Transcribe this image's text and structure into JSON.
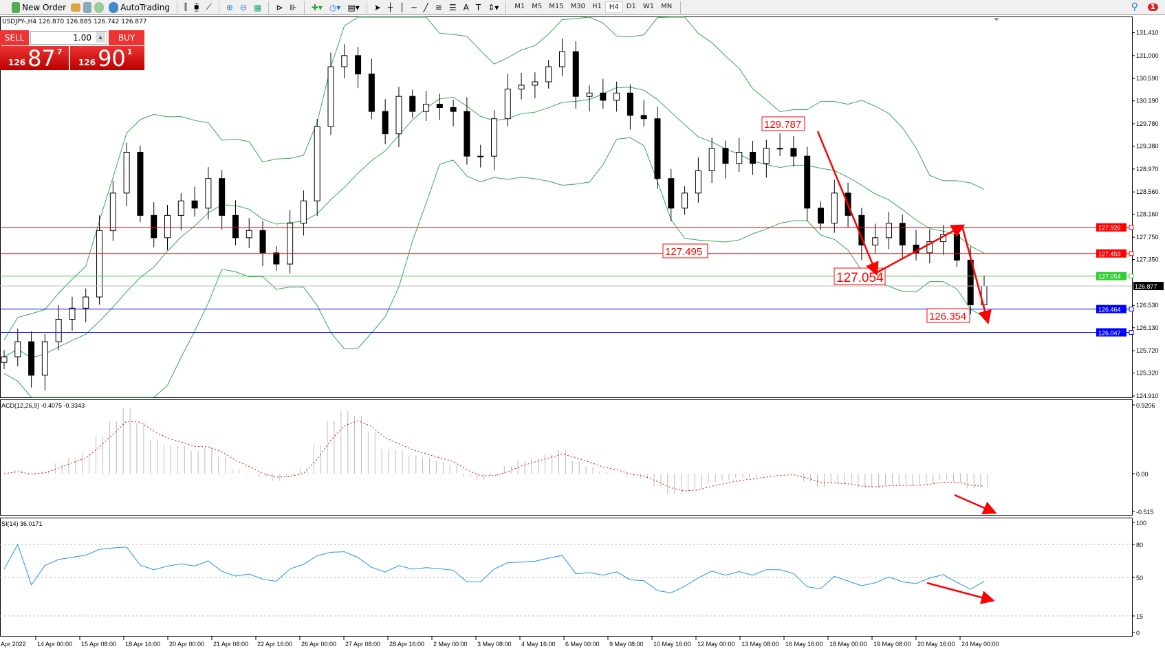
{
  "toolbar": {
    "new_order": "New Order",
    "autotrading": "AutoTrading",
    "timeframes": [
      "M1",
      "M5",
      "M15",
      "M30",
      "H1",
      "H4",
      "D1",
      "W1",
      "MN"
    ],
    "active_timeframe": "H4",
    "notifications": "1"
  },
  "symbol_info": "USDJPY-,H4  126.870 126.885 126.742 126.877",
  "oneclick": {
    "sell": "SELL",
    "buy": "BUY",
    "lot": "1.00",
    "sell_small": "126",
    "sell_big": "87",
    "sell_pip": "7",
    "buy_small": "126",
    "buy_big": "90",
    "buy_pip": "1"
  },
  "chart_data": {
    "type": "candlestick",
    "symbol": "USDJPY-",
    "timeframe": "H4",
    "closes": [
      125.61,
      125.88,
      125.28,
      125.88,
      126.28,
      126.48,
      126.68,
      127.87,
      128.54,
      129.27,
      128.14,
      127.74,
      128.14,
      128.4,
      128.27,
      128.8,
      128.14,
      127.74,
      127.87,
      127.47,
      127.27,
      128.0,
      128.4,
      129.73,
      130.8,
      131.0,
      130.67,
      130.0,
      129.6,
      130.27,
      130.0,
      130.13,
      130.07,
      130.0,
      129.2,
      129.2,
      129.87,
      130.4,
      130.47,
      130.53,
      130.8,
      131.07,
      130.27,
      130.33,
      130.2,
      130.33,
      129.93,
      129.87,
      128.8,
      128.27,
      128.54,
      128.94,
      129.34,
      129.07,
      129.27,
      129.07,
      129.34,
      129.34,
      129.2,
      128.27,
      128.0,
      128.54,
      128.14,
      127.61,
      127.74,
      128.0,
      127.61,
      127.47,
      127.67,
      127.8,
      127.34,
      126.54,
      126.877
    ],
    "price_ticks": [
      "131.410",
      "131.000",
      "130.590",
      "130.190",
      "129.780",
      "129.380",
      "128.970",
      "128.560",
      "128.160",
      "127.750",
      "127.350",
      "126.530",
      "126.130",
      "125.720",
      "125.320",
      "124.910"
    ],
    "yrange": [
      124.91,
      131.41
    ],
    "hlines": [
      {
        "value": "127.926",
        "color": "#ff0000"
      },
      {
        "value": "127.459",
        "color": "#ff0000"
      },
      {
        "value": "127.054",
        "color": "#33cc33"
      },
      {
        "value": "126.464",
        "color": "#0000ff"
      },
      {
        "value": "126.047",
        "color": "#0000ff"
      }
    ],
    "bid_line": {
      "value": "126.877",
      "color": "#000000"
    },
    "annotations": [
      "129.787",
      "127.495",
      "127.054",
      "126.354"
    ],
    "bands_color": "#33aa55",
    "time_labels": [
      "Apr 2022",
      "14 Apr 00:00",
      "15 Apr 08:00",
      "18 Apr 16:00",
      "20 Apr 00:00",
      "21 Apr 08:00",
      "22 Apr 16:00",
      "26 Apr 00:00",
      "27 Apr 08:00",
      "28 Apr 16:00",
      "2 May 00:00",
      "3 May 08:00",
      "4 May 16:00",
      "6 May 00:00",
      "9 May 08:00",
      "10 May 16:00",
      "12 May 00:00",
      "13 May 08:00",
      "16 May 16:00",
      "18 May 00:00",
      "19 May 08:00",
      "20 May 16:00",
      "24 May 00:00"
    ],
    "macd": {
      "label": "ACD(12,26,9) -0.4075 -0.3343",
      "ticks": [
        "0.9206",
        "0.00",
        "-0.515"
      ],
      "range": [
        -0.515,
        0.9206
      ]
    },
    "rsi": {
      "label": "SI(14) 36.0171",
      "ticks": [
        "100",
        "80",
        "50",
        "15",
        "0"
      ],
      "levels": [
        80,
        50,
        15
      ]
    }
  }
}
